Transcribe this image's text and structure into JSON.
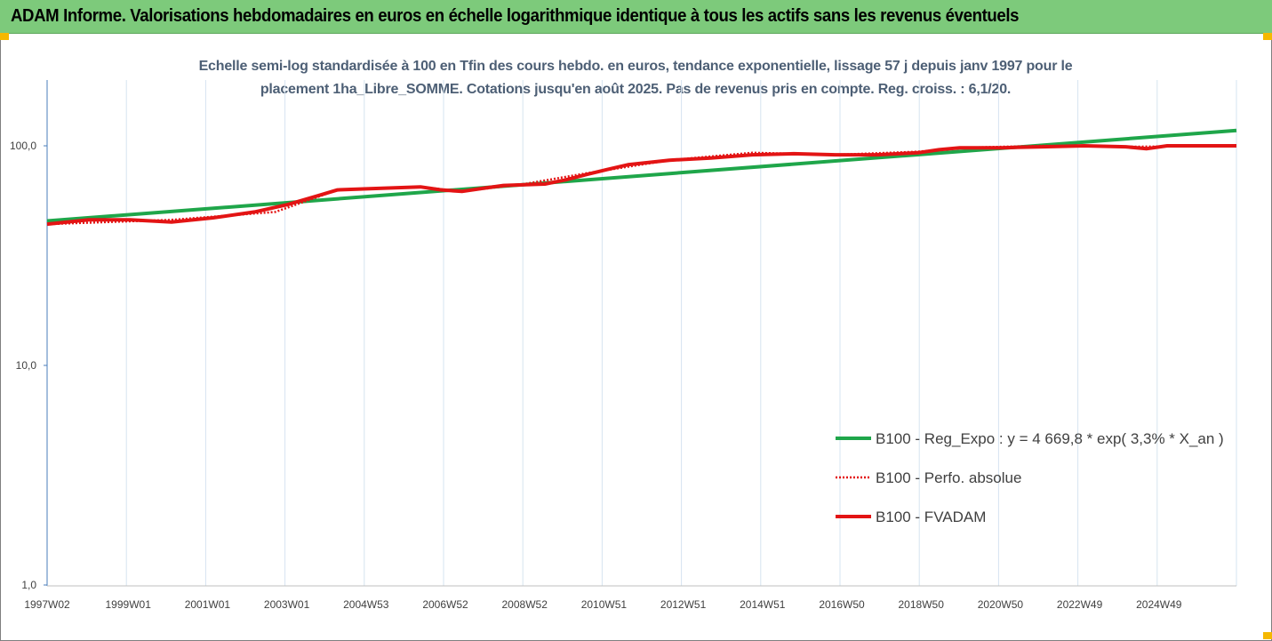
{
  "window": {
    "title": "ADAM Informe. Valorisations hebdomadaires en euros en échelle logarithmique identique à tous les actifs sans les revenus éventuels"
  },
  "colors": {
    "banner": "#7dca7b",
    "trend": "#1fa64a",
    "fvadam": "#e31414",
    "perfo": "#e31414",
    "grid": "#d6e4f0",
    "axis": "#4a7ebb",
    "accent": "#f5b800"
  },
  "chart_data": {
    "type": "line",
    "title_line1": "Echelle semi-log standardisée à 100 en Tfin des cours hebdo. en euros, tendance exponentielle, lissage 57 j depuis janv 1997 pour le",
    "title_line2": "placement 1ha_Libre_SOMME. Cotations jusqu'en août 2025. Pas de revenus pris en compte. Reg. croiss. : 6,1/20.",
    "y_scale": "log",
    "ylim": [
      1,
      200
    ],
    "y_ticks": [
      "1,0",
      "10,0",
      "100,0"
    ],
    "x_range": [
      1997.0,
      2025.67
    ],
    "x_ticks": [
      "1997W02",
      "1999W01",
      "2001W01",
      "2003W01",
      "2004W53",
      "2006W52",
      "2008W52",
      "2010W51",
      "2012W51",
      "2014W51",
      "2016W50",
      "2018W50",
      "2020W50",
      "2022W49",
      "2024W49"
    ],
    "grid": "vertical",
    "legend_position": "right",
    "series": [
      {
        "name": "B100 - Reg_Expo : y = 4 669,8 * exp( 3,3% *  X_an )",
        "style": "solid",
        "x": [
          1997.0,
          2025.67
        ],
        "y": [
          45.5,
          117.5
        ]
      },
      {
        "name": "B100 - Perfo. absolue",
        "style": "dotted",
        "x": [
          1997.0,
          2000.0,
          2002.5,
          2004.0,
          2006.0,
          2007.0,
          2008.5,
          2010.0,
          2012.0,
          2014.0,
          2016.0,
          2018.0,
          2019.0,
          2021.0,
          2023.0,
          2025.67
        ],
        "y": [
          44,
          46,
          50,
          63,
          65,
          62,
          67,
          75,
          86,
          93,
          91,
          94,
          98,
          100,
          99,
          100
        ]
      },
      {
        "name": "B100 - FVADAM",
        "style": "solid",
        "x": [
          1997.0,
          1998.0,
          1999.0,
          2000.0,
          2001.0,
          2002.0,
          2002.8,
          2003.5,
          2004.0,
          2005.0,
          2006.0,
          2006.5,
          2007.0,
          2007.5,
          2008.0,
          2009.0,
          2009.5,
          2010.0,
          2010.5,
          2011.0,
          2012.0,
          2013.0,
          2014.0,
          2015.0,
          2016.0,
          2017.0,
          2018.0,
          2018.5,
          2019.0,
          2020.0,
          2021.0,
          2022.0,
          2023.0,
          2023.5,
          2024.0,
          2025.0,
          2025.67
        ],
        "y": [
          44,
          46,
          46,
          45,
          47,
          50,
          54,
          59,
          63,
          64,
          65,
          63,
          62,
          64,
          66,
          67,
          70,
          74,
          78,
          82,
          86,
          88,
          91,
          92,
          91,
          91,
          93,
          96,
          98,
          98,
          99,
          100,
          99,
          97,
          100,
          100,
          100
        ]
      }
    ]
  }
}
